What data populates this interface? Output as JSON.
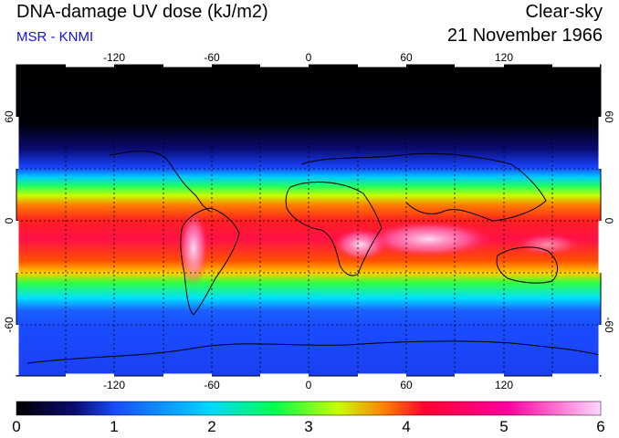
{
  "header": {
    "title": "DNA-damage UV dose (kJ/m2)",
    "subtitle": "MSR - KNMI",
    "sky_condition": "Clear-sky",
    "date": "21 November 1966"
  },
  "map": {
    "projection": "equirectangular",
    "lon_ticks": [
      "-120",
      "-60",
      "0",
      "60",
      "120"
    ],
    "lat_ticks": [
      "60",
      "0",
      "-60"
    ],
    "gridlines": "dashed, every 30 degrees"
  },
  "colorbar": {
    "ticks": [
      "0",
      "1",
      "2",
      "3",
      "4",
      "5",
      "6"
    ],
    "colors": [
      "#000000",
      "#0b0b6e",
      "#1a4cff",
      "#00d8ff",
      "#00ff50",
      "#c8ff00",
      "#ff8000",
      "#ff0030",
      "#ff00a0",
      "#ffc8ff"
    ]
  },
  "chart_data": {
    "type": "heatmap",
    "title": "DNA-damage UV dose (kJ/m2)",
    "x": [
      "-120",
      "-60",
      "0",
      "60",
      "120"
    ],
    "y": [
      "60",
      "0",
      "-60"
    ],
    "color_range": [
      0,
      6
    ],
    "latitude_bands": [
      {
        "lat": 80,
        "value": 0.0
      },
      {
        "lat": 60,
        "value": 0.2
      },
      {
        "lat": 45,
        "value": 1.0
      },
      {
        "lat": 35,
        "value": 1.8
      },
      {
        "lat": 25,
        "value": 3.0
      },
      {
        "lat": 15,
        "value": 3.8
      },
      {
        "lat": 5,
        "value": 4.3
      },
      {
        "lat": -5,
        "value": 4.7
      },
      {
        "lat": -15,
        "value": 4.6
      },
      {
        "lat": -25,
        "value": 4.0
      },
      {
        "lat": -35,
        "value": 3.0
      },
      {
        "lat": -45,
        "value": 2.2
      },
      {
        "lat": -55,
        "value": 1.4
      },
      {
        "lat": -65,
        "value": 1.0
      },
      {
        "lat": -80,
        "value": 1.0
      }
    ]
  }
}
